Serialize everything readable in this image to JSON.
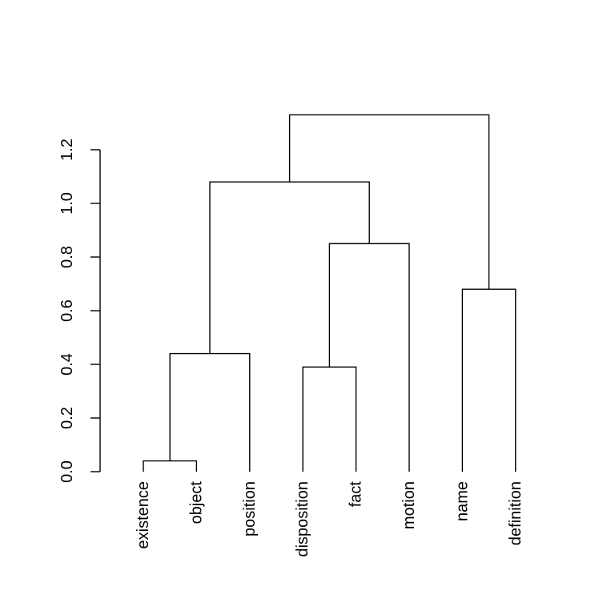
{
  "chart_data": {
    "type": "dendrogram",
    "title": "",
    "xlabel": "",
    "ylabel": "",
    "ylim": [
      0,
      1.35
    ],
    "y_ticks": [
      0.0,
      0.2,
      0.4,
      0.6,
      0.8,
      1.0,
      1.2
    ],
    "y_tick_labels": [
      "0.0",
      "0.2",
      "0.4",
      "0.6",
      "0.8",
      "1.0",
      "1.2"
    ],
    "leaves": [
      "existence",
      "object",
      "position",
      "disposition",
      "fact",
      "motion",
      "name",
      "definition"
    ],
    "leaf_height": 0.0,
    "merges": [
      {
        "left": "existence",
        "right": "object",
        "height": 0.04
      },
      {
        "left": "existence+object",
        "right": "position",
        "height": 0.44
      },
      {
        "left": "disposition",
        "right": "fact",
        "height": 0.39
      },
      {
        "left": "disposition+fact",
        "right": "motion",
        "height": 0.85
      },
      {
        "left": "existence+object+position",
        "right": "disposition+fact+motion",
        "height": 1.08
      },
      {
        "left": "name",
        "right": "definition",
        "height": 0.68
      },
      {
        "left": "existence+object+position+disposition+fact+motion",
        "right": "name+definition",
        "height": 1.33
      }
    ],
    "grid": false,
    "colors": {
      "line": "#000000",
      "background": "#ffffff"
    }
  }
}
